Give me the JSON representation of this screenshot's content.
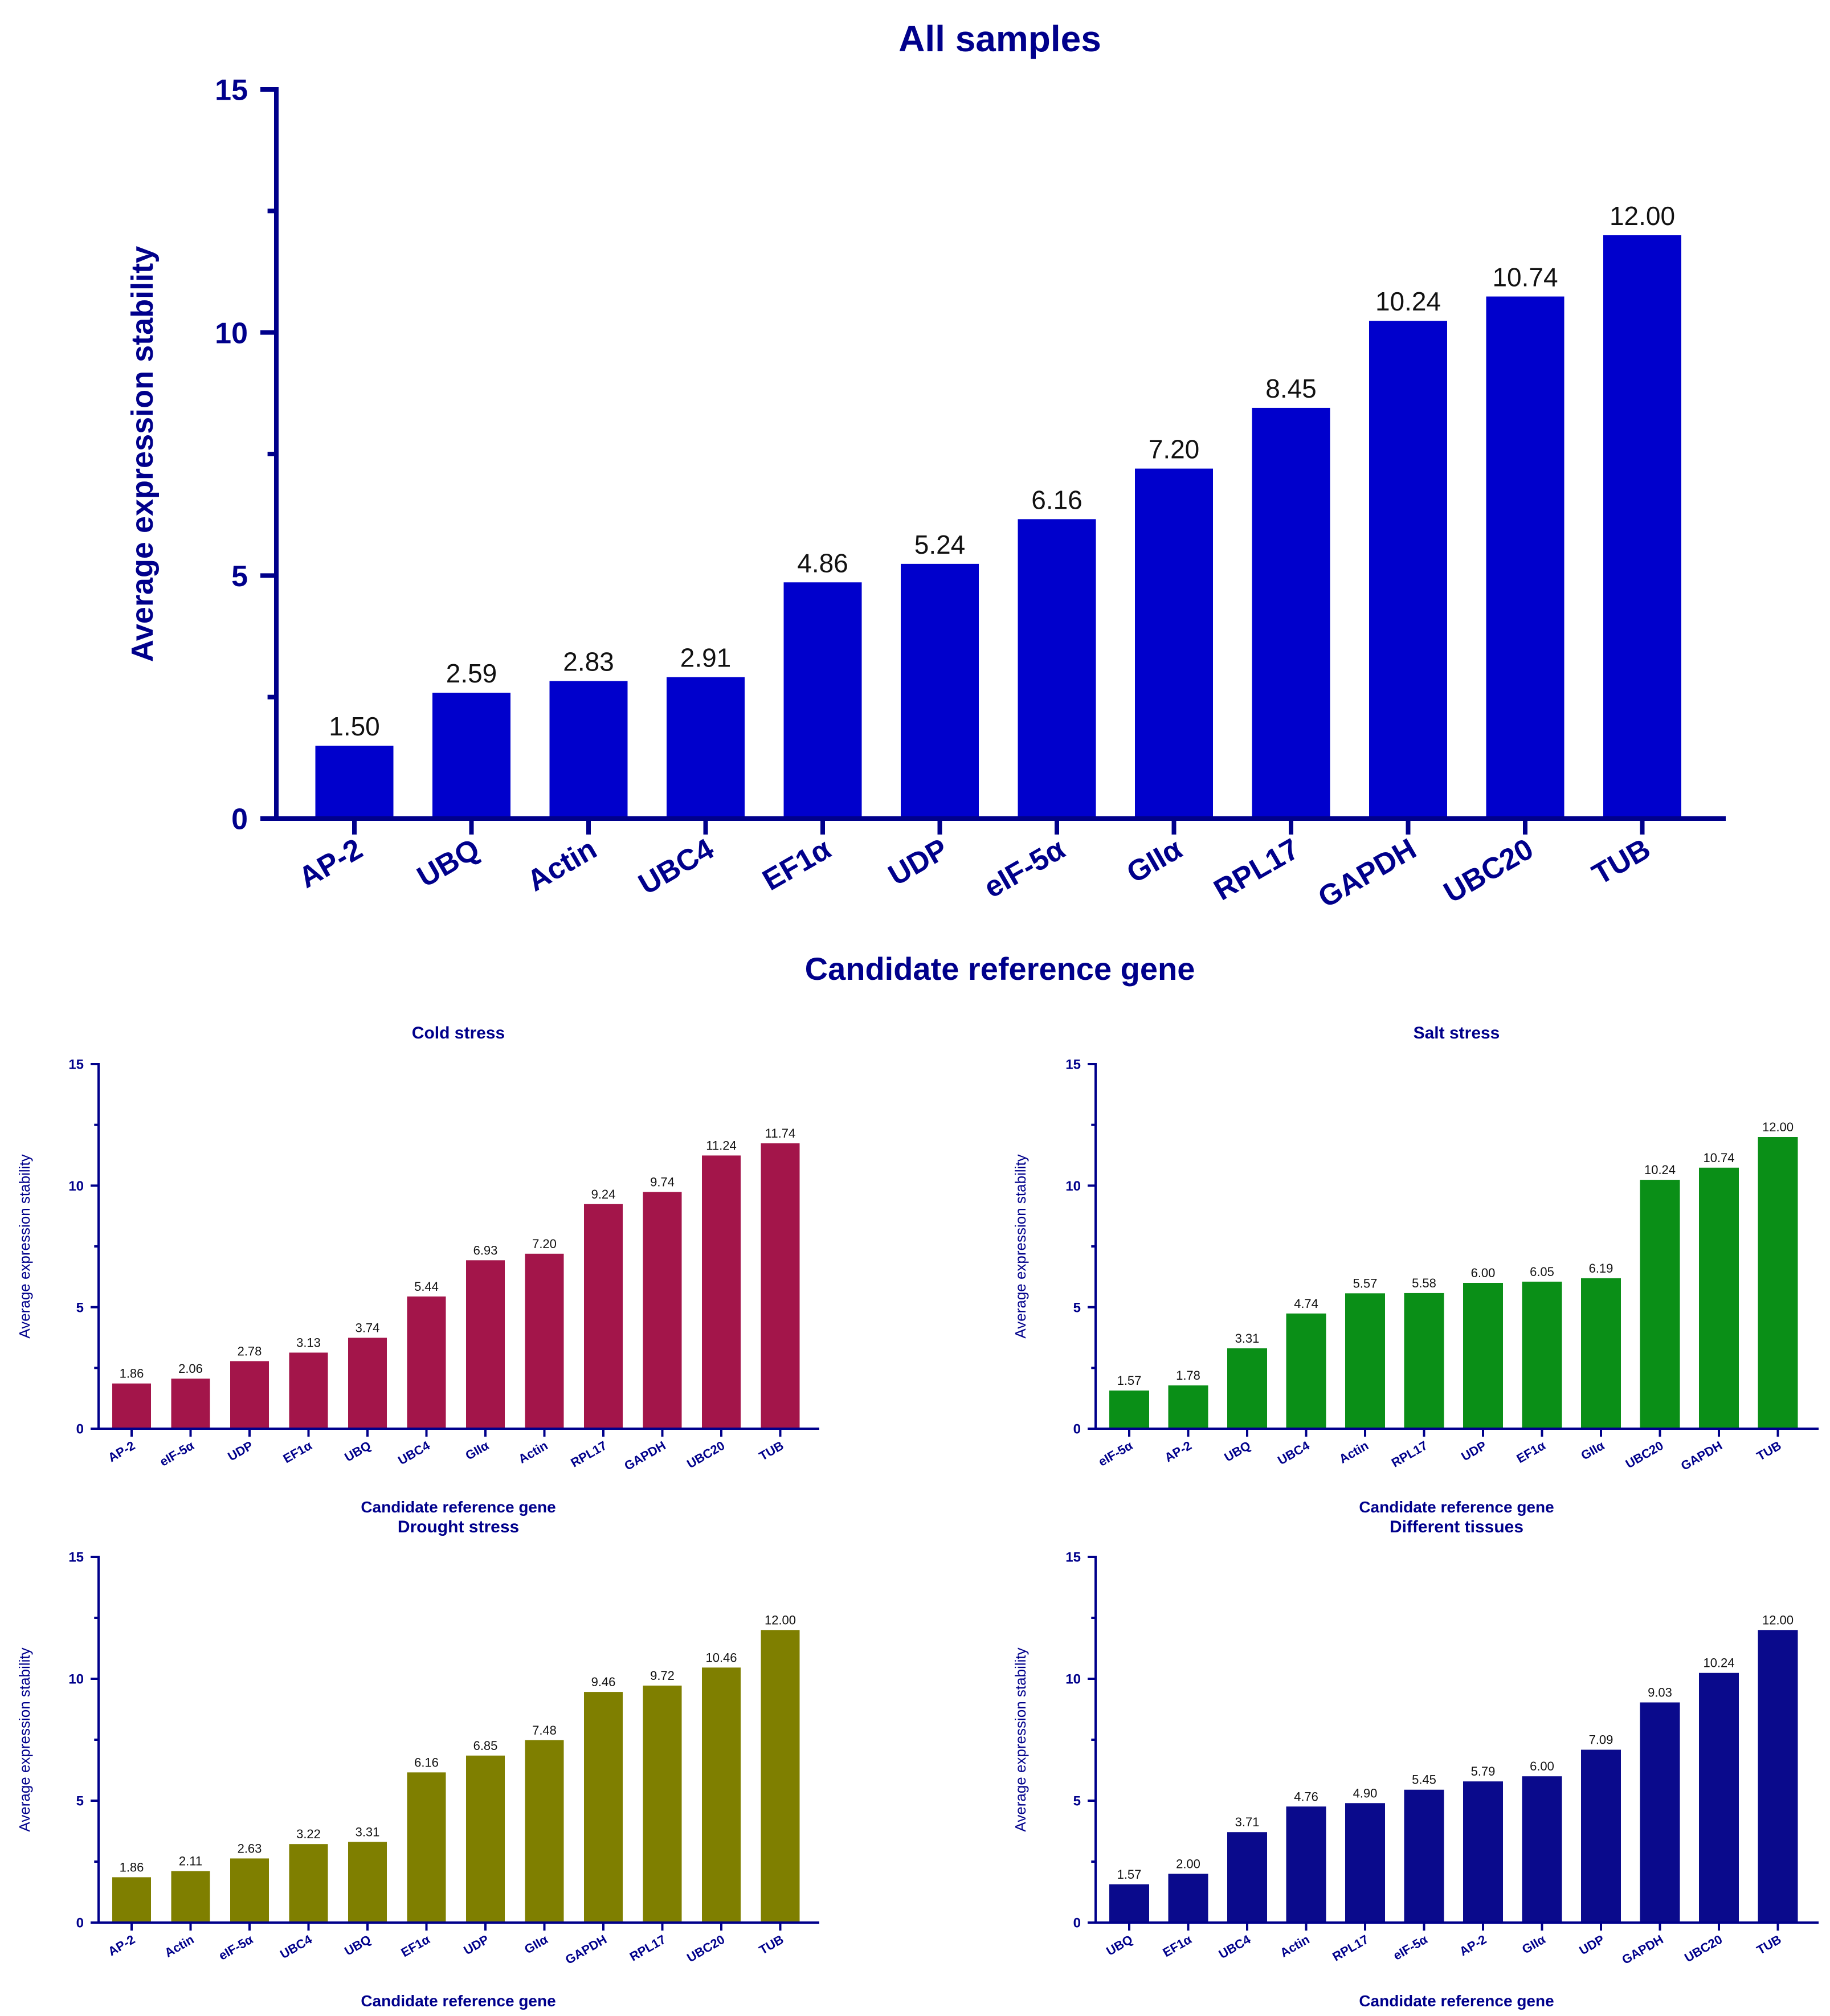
{
  "chart_data": [
    {
      "id": "all",
      "type": "bar",
      "title": "All samples",
      "xlabel": "Candidate reference gene",
      "ylabel": "Average expression stability",
      "ylim": [
        0,
        15
      ],
      "yticks": [
        0,
        5,
        10,
        15
      ],
      "color": "#0000cc",
      "categories": [
        "AP-2",
        "UBQ",
        "Actin",
        "UBC4",
        "EF1α",
        "UDP",
        "eIF-5α",
        "GIIα",
        "RPL17",
        "GAPDH",
        "UBC20",
        "TUB"
      ],
      "values": [
        1.5,
        2.59,
        2.83,
        2.91,
        4.86,
        5.24,
        6.16,
        7.2,
        8.45,
        10.24,
        10.74,
        12.0
      ],
      "labels": [
        "1.50",
        "2.59",
        "2.83",
        "2.91",
        "4.86",
        "5.24",
        "6.16",
        "7.20",
        "8.45",
        "10.24",
        "10.74",
        "12.00"
      ]
    },
    {
      "id": "cold",
      "type": "bar",
      "title": "Cold stress",
      "xlabel": "Candidate reference gene",
      "ylabel": "Average expression stability",
      "ylim": [
        0,
        15
      ],
      "yticks": [
        0,
        5,
        10,
        15
      ],
      "color": "#a3154a",
      "categories": [
        "AP-2",
        "eIF-5α",
        "UDP",
        "EF1α",
        "UBQ",
        "UBC4",
        "GIIα",
        "Actin",
        "RPL17",
        "GAPDH",
        "UBC20",
        "TUB"
      ],
      "values": [
        1.86,
        2.06,
        2.78,
        3.13,
        3.74,
        5.44,
        6.93,
        7.2,
        9.24,
        9.74,
        11.24,
        11.74
      ],
      "labels": [
        "1.86",
        "2.06",
        "2.78",
        "3.13",
        "3.74",
        "5.44",
        "6.93",
        "7.20",
        "9.24",
        "9.74",
        "11.24",
        "11.74"
      ]
    },
    {
      "id": "salt",
      "type": "bar",
      "title": "Salt stress",
      "xlabel": "Candidate reference gene",
      "ylabel": "Average expression stability",
      "ylim": [
        0,
        15
      ],
      "yticks": [
        0,
        5,
        10,
        15
      ],
      "color": "#0a8f17",
      "categories": [
        "eIF-5α",
        "AP-2",
        "UBQ",
        "UBC4",
        "Actin",
        "RPL17",
        "UDP",
        "EF1α",
        "GIIα",
        "UBC20",
        "GAPDH",
        "TUB"
      ],
      "values": [
        1.57,
        1.78,
        3.31,
        4.74,
        5.57,
        5.58,
        6.0,
        6.05,
        6.19,
        10.24,
        10.74,
        12.0
      ],
      "labels": [
        "1.57",
        "1.78",
        "3.31",
        "4.74",
        "5.57",
        "5.58",
        "6.00",
        "6.05",
        "6.19",
        "10.24",
        "10.74",
        "12.00"
      ]
    },
    {
      "id": "drought",
      "type": "bar",
      "title": "Drought stress",
      "xlabel": "Candidate reference gene",
      "ylabel": "Average expression stability",
      "ylim": [
        0,
        15
      ],
      "yticks": [
        0,
        5,
        10,
        15
      ],
      "color": "#7f7f00",
      "categories": [
        "AP-2",
        "Actin",
        "eIF-5α",
        "UBC4",
        "UBQ",
        "EF1α",
        "UDP",
        "GIIα",
        "GAPDH",
        "RPL17",
        "UBC20",
        "TUB"
      ],
      "values": [
        1.86,
        2.11,
        2.63,
        3.22,
        3.31,
        6.16,
        6.85,
        7.48,
        9.46,
        9.72,
        10.46,
        12.0
      ],
      "labels": [
        "1.86",
        "2.11",
        "2.63",
        "3.22",
        "3.31",
        "6.16",
        "6.85",
        "7.48",
        "9.46",
        "9.72",
        "10.46",
        "12.00"
      ]
    },
    {
      "id": "tissues",
      "type": "bar",
      "title": "Different tissues",
      "xlabel": "Candidate reference gene",
      "ylabel": "Average expression stability",
      "ylim": [
        0,
        15
      ],
      "yticks": [
        0,
        5,
        10,
        15
      ],
      "color": "#0a0a8c",
      "categories": [
        "UBQ",
        "EF1α",
        "UBC4",
        "Actin",
        "RPL17",
        "eIF-5α",
        "AP-2",
        "GIIα",
        "UDP",
        "GAPDH",
        "UBC20",
        "TUB"
      ],
      "values": [
        1.57,
        2.0,
        3.71,
        4.76,
        4.9,
        5.45,
        5.79,
        6.0,
        7.09,
        9.03,
        10.24,
        12.0
      ],
      "labels": [
        "1.57",
        "2.00",
        "3.71",
        "4.76",
        "4.90",
        "5.45",
        "5.79",
        "6.00",
        "7.09",
        "9.03",
        "10.24",
        "12.00"
      ]
    }
  ]
}
